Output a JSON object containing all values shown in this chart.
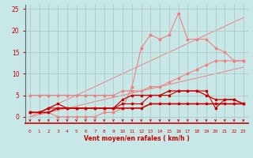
{
  "x": [
    0,
    1,
    2,
    3,
    4,
    5,
    6,
    7,
    8,
    9,
    10,
    11,
    12,
    13,
    14,
    15,
    16,
    17,
    18,
    19,
    20,
    21,
    22,
    23
  ],
  "line_rafales_max": [
    1,
    1,
    1,
    0,
    0,
    0,
    0,
    0,
    1,
    1,
    2,
    7,
    16,
    19,
    18,
    19,
    24,
    18,
    18,
    18,
    16,
    15,
    13,
    13
  ],
  "line_moy_max": [
    5,
    5,
    5,
    5,
    5,
    5,
    5,
    5,
    5,
    5,
    6,
    6,
    6,
    7,
    7,
    8,
    9,
    10,
    11,
    12,
    13,
    13,
    13,
    13
  ],
  "line_rafales_med": [
    1,
    1,
    2,
    3,
    2,
    2,
    2,
    2,
    2,
    2,
    4,
    5,
    5,
    5,
    5,
    6,
    6,
    6,
    6,
    5,
    4,
    4,
    4,
    3
  ],
  "line_moy_med": [
    1,
    1,
    1,
    2,
    2,
    2,
    2,
    2,
    2,
    2,
    2,
    2,
    2,
    3,
    3,
    3,
    3,
    3,
    3,
    3,
    3,
    3,
    3,
    3
  ],
  "line_flat": [
    1,
    1,
    2,
    2,
    2,
    2,
    2,
    2,
    2,
    2,
    3,
    3,
    3,
    5,
    5,
    5,
    6,
    6,
    6,
    6,
    2,
    4,
    4,
    3
  ],
  "diag1": [
    0,
    1,
    2,
    3,
    4,
    5,
    6,
    7,
    8,
    9,
    10,
    11,
    12,
    13,
    14,
    15,
    16,
    17,
    18,
    19,
    20,
    21,
    22,
    23
  ],
  "diag2": [
    0,
    0.5,
    1,
    1.5,
    2,
    2.5,
    3,
    3.5,
    4,
    4.5,
    5,
    5.5,
    6,
    6.5,
    7,
    7.5,
    8,
    8.5,
    9,
    9.5,
    10,
    10.5,
    11,
    11.5
  ],
  "bg_color": "#c8e8e8",
  "grid_color": "#b0c8c8",
  "color_light": "#f08080",
  "color_dark": "#cc0000",
  "xlabel": "Vent moyen/en rafales ( km/h )",
  "xlim_min": -0.5,
  "xlim_max": 23.5,
  "ylim_min": -1.5,
  "ylim_max": 26,
  "yticks": [
    0,
    5,
    10,
    15,
    20,
    25
  ]
}
